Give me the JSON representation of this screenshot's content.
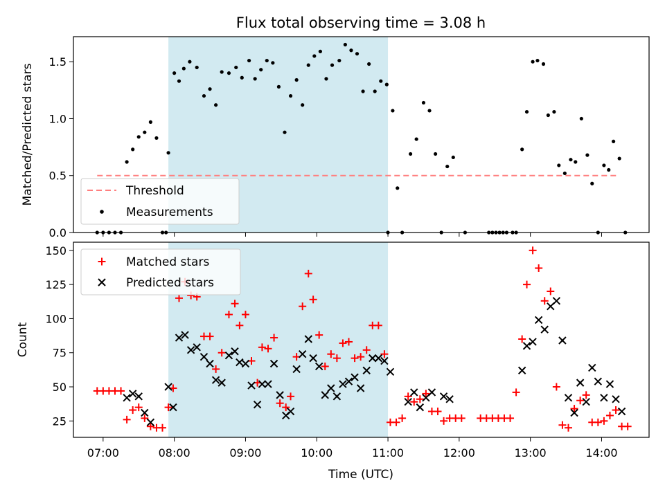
{
  "chart_data": [
    {
      "type": "scatter",
      "title": "Flux total observing time = 3.08 h",
      "ylabel": "Matched/Predicted stars",
      "ylim": [
        0,
        1.72
      ],
      "y_ticks": [
        "0.0",
        "0.5",
        "1.0",
        "1.5"
      ],
      "shaded_interval": {
        "start": "07:55",
        "end": "11:00",
        "color": "#add8e6"
      },
      "legend_position": "lower-left",
      "threshold": {
        "name": "Threshold",
        "value": 0.5,
        "x_start": "06:55",
        "x_end": "14:15",
        "color": "#ff7f7f"
      },
      "series": [
        {
          "name": "Measurements",
          "color": "#000000",
          "points": [
            [
              "06:55",
              0
            ],
            [
              "07:00",
              0
            ],
            [
              "07:05",
              0
            ],
            [
              "07:10",
              0
            ],
            [
              "07:15",
              0
            ],
            [
              "07:20",
              0.62
            ],
            [
              "07:25",
              0.73
            ],
            [
              "07:30",
              0.84
            ],
            [
              "07:35",
              0.88
            ],
            [
              "07:40",
              0.97
            ],
            [
              "07:45",
              0.83
            ],
            [
              "07:50",
              0
            ],
            [
              "07:53",
              0
            ],
            [
              "07:55",
              0.7
            ],
            [
              "08:00",
              1.4
            ],
            [
              "08:04",
              1.33
            ],
            [
              "08:08",
              1.44
            ],
            [
              "08:13",
              1.5
            ],
            [
              "08:19",
              1.45
            ],
            [
              "08:25",
              1.2
            ],
            [
              "08:30",
              1.26
            ],
            [
              "08:35",
              1.12
            ],
            [
              "08:40",
              1.41
            ],
            [
              "08:46",
              1.4
            ],
            [
              "08:52",
              1.45
            ],
            [
              "08:57",
              1.36
            ],
            [
              "09:03",
              1.51
            ],
            [
              "09:08",
              1.35
            ],
            [
              "09:13",
              1.43
            ],
            [
              "09:18",
              1.51
            ],
            [
              "09:23",
              1.49
            ],
            [
              "09:28",
              1.28
            ],
            [
              "09:33",
              0.88
            ],
            [
              "09:38",
              1.2
            ],
            [
              "09:43",
              1.34
            ],
            [
              "09:48",
              1.12
            ],
            [
              "09:53",
              1.47
            ],
            [
              "09:58",
              1.55
            ],
            [
              "10:03",
              1.59
            ],
            [
              "10:08",
              1.35
            ],
            [
              "10:13",
              1.47
            ],
            [
              "10:19",
              1.51
            ],
            [
              "10:24",
              1.65
            ],
            [
              "10:29",
              1.6
            ],
            [
              "10:34",
              1.57
            ],
            [
              "10:39",
              1.24
            ],
            [
              "10:44",
              1.48
            ],
            [
              "10:49",
              1.24
            ],
            [
              "10:54",
              1.33
            ],
            [
              "10:59",
              1.3
            ],
            [
              "11:00",
              0
            ],
            [
              "11:04",
              1.07
            ],
            [
              "11:08",
              0.39
            ],
            [
              "11:12",
              0
            ],
            [
              "11:19",
              0.69
            ],
            [
              "11:24",
              0.82
            ],
            [
              "11:30",
              1.14
            ],
            [
              "11:35",
              1.07
            ],
            [
              "11:40",
              0.69
            ],
            [
              "11:45",
              0
            ],
            [
              "11:50",
              0.58
            ],
            [
              "11:55",
              0.66
            ],
            [
              "12:05",
              0
            ],
            [
              "12:25",
              0
            ],
            [
              "12:28",
              0
            ],
            [
              "12:31",
              0
            ],
            [
              "12:34",
              0
            ],
            [
              "12:37",
              0
            ],
            [
              "12:40",
              0
            ],
            [
              "12:45",
              0
            ],
            [
              "12:48",
              0
            ],
            [
              "12:53",
              0.73
            ],
            [
              "12:57",
              1.06
            ],
            [
              "13:02",
              1.5
            ],
            [
              "13:06",
              1.51
            ],
            [
              "13:11",
              1.48
            ],
            [
              "13:15",
              1.03
            ],
            [
              "13:20",
              1.06
            ],
            [
              "13:24",
              0.59
            ],
            [
              "13:29",
              0.52
            ],
            [
              "13:34",
              0.64
            ],
            [
              "13:38",
              0.62
            ],
            [
              "13:43",
              1.0
            ],
            [
              "13:48",
              0.68
            ],
            [
              "13:52",
              0.43
            ],
            [
              "13:57",
              0
            ],
            [
              "14:02",
              0.59
            ],
            [
              "14:06",
              0.55
            ],
            [
              "14:10",
              0.8
            ],
            [
              "14:15",
              0.65
            ],
            [
              "14:20",
              0
            ]
          ]
        }
      ]
    },
    {
      "type": "scatter",
      "xlabel": "Time (UTC)",
      "ylabel": "Count",
      "ylim": [
        13,
        156
      ],
      "xlim": [
        "06:35",
        "14:40"
      ],
      "x_ticks": [
        "07:00",
        "08:00",
        "09:00",
        "10:00",
        "11:00",
        "12:00",
        "13:00",
        "14:00"
      ],
      "y_ticks": [
        "25",
        "50",
        "75",
        "100",
        "125",
        "150"
      ],
      "shaded_interval": {
        "start": "07:55",
        "end": "11:00",
        "color": "#add8e6"
      },
      "legend_position": "upper-left",
      "series": [
        {
          "name": "Matched stars",
          "marker": "plus",
          "color": "#ff0000",
          "points": [
            [
              "06:55",
              47
            ],
            [
              "07:00",
              47
            ],
            [
              "07:05",
              47
            ],
            [
              "07:10",
              47
            ],
            [
              "07:15",
              47
            ],
            [
              "07:20",
              26
            ],
            [
              "07:25",
              33
            ],
            [
              "07:30",
              35
            ],
            [
              "07:35",
              27
            ],
            [
              "07:40",
              21
            ],
            [
              "07:45",
              20
            ],
            [
              "07:50",
              20
            ],
            [
              "07:55",
              35
            ],
            [
              "07:59",
              49
            ],
            [
              "08:04",
              115
            ],
            [
              "08:09",
              127
            ],
            [
              "08:14",
              117
            ],
            [
              "08:19",
              116
            ],
            [
              "08:25",
              87
            ],
            [
              "08:30",
              87
            ],
            [
              "08:35",
              63
            ],
            [
              "08:40",
              75
            ],
            [
              "08:46",
              103
            ],
            [
              "08:51",
              111
            ],
            [
              "08:55",
              95
            ],
            [
              "09:00",
              103
            ],
            [
              "09:05",
              69
            ],
            [
              "09:10",
              53
            ],
            [
              "09:14",
              79
            ],
            [
              "09:19",
              78
            ],
            [
              "09:24",
              86
            ],
            [
              "09:29",
              38
            ],
            [
              "09:34",
              35
            ],
            [
              "09:38",
              43
            ],
            [
              "09:43",
              72
            ],
            [
              "09:48",
              109
            ],
            [
              "09:53",
              133
            ],
            [
              "09:57",
              114
            ],
            [
              "10:02",
              88
            ],
            [
              "10:07",
              65
            ],
            [
              "10:12",
              74
            ],
            [
              "10:17",
              71
            ],
            [
              "10:22",
              82
            ],
            [
              "10:27",
              83
            ],
            [
              "10:32",
              71
            ],
            [
              "10:37",
              72
            ],
            [
              "10:42",
              77
            ],
            [
              "10:47",
              95
            ],
            [
              "10:52",
              95
            ],
            [
              "10:57",
              74
            ],
            [
              "11:02",
              24
            ],
            [
              "11:07",
              24
            ],
            [
              "11:12",
              27
            ],
            [
              "11:17",
              43
            ],
            [
              "11:22",
              39
            ],
            [
              "11:27",
              41
            ],
            [
              "11:32",
              45
            ],
            [
              "11:37",
              32
            ],
            [
              "11:42",
              32
            ],
            [
              "11:47",
              25
            ],
            [
              "11:52",
              27
            ],
            [
              "11:57",
              27
            ],
            [
              "12:02",
              27
            ],
            [
              "12:18",
              27
            ],
            [
              "12:23",
              27
            ],
            [
              "12:28",
              27
            ],
            [
              "12:33",
              27
            ],
            [
              "12:38",
              27
            ],
            [
              "12:43",
              27
            ],
            [
              "12:48",
              46
            ],
            [
              "12:53",
              85
            ],
            [
              "12:57",
              125
            ],
            [
              "13:02",
              150
            ],
            [
              "13:07",
              137
            ],
            [
              "13:12",
              113
            ],
            [
              "13:17",
              120
            ],
            [
              "13:22",
              50
            ],
            [
              "13:27",
              22
            ],
            [
              "13:32",
              20
            ],
            [
              "13:37",
              34
            ],
            [
              "13:42",
              40
            ],
            [
              "13:47",
              44
            ],
            [
              "13:52",
              24
            ],
            [
              "13:57",
              24
            ],
            [
              "14:02",
              25
            ],
            [
              "14:07",
              29
            ],
            [
              "14:12",
              33
            ],
            [
              "14:17",
              21
            ],
            [
              "14:22",
              21
            ]
          ]
        },
        {
          "name": "Predicted stars",
          "marker": "x",
          "color": "#000000",
          "points": [
            [
              "07:20",
              42
            ],
            [
              "07:25",
              45
            ],
            [
              "07:30",
              43
            ],
            [
              "07:35",
              31
            ],
            [
              "07:40",
              24
            ],
            [
              "07:55",
              50
            ],
            [
              "07:59",
              35
            ],
            [
              "08:04",
              86
            ],
            [
              "08:09",
              88
            ],
            [
              "08:14",
              77
            ],
            [
              "08:19",
              79
            ],
            [
              "08:25",
              72
            ],
            [
              "08:30",
              67
            ],
            [
              "08:35",
              55
            ],
            [
              "08:40",
              53
            ],
            [
              "08:46",
              73
            ],
            [
              "08:51",
              76
            ],
            [
              "08:55",
              68
            ],
            [
              "09:00",
              67
            ],
            [
              "09:05",
              51
            ],
            [
              "09:10",
              37
            ],
            [
              "09:14",
              52
            ],
            [
              "09:19",
              52
            ],
            [
              "09:24",
              67
            ],
            [
              "09:29",
              44
            ],
            [
              "09:34",
              29
            ],
            [
              "09:38",
              32
            ],
            [
              "09:43",
              63
            ],
            [
              "09:48",
              74
            ],
            [
              "09:53",
              85
            ],
            [
              "09:57",
              71
            ],
            [
              "10:02",
              65
            ],
            [
              "10:07",
              44
            ],
            [
              "10:12",
              49
            ],
            [
              "10:17",
              43
            ],
            [
              "10:22",
              52
            ],
            [
              "10:27",
              54
            ],
            [
              "10:32",
              57
            ],
            [
              "10:37",
              49
            ],
            [
              "10:42",
              62
            ],
            [
              "10:47",
              71
            ],
            [
              "10:52",
              71
            ],
            [
              "10:57",
              69
            ],
            [
              "11:02",
              61
            ],
            [
              "11:17",
              39
            ],
            [
              "11:22",
              46
            ],
            [
              "11:27",
              35
            ],
            [
              "11:32",
              42
            ],
            [
              "11:37",
              46
            ],
            [
              "11:47",
              43
            ],
            [
              "11:52",
              41
            ],
            [
              "12:53",
              62
            ],
            [
              "12:57",
              80
            ],
            [
              "13:02",
              83
            ],
            [
              "13:07",
              99
            ],
            [
              "13:12",
              92
            ],
            [
              "13:17",
              109
            ],
            [
              "13:22",
              113
            ],
            [
              "13:27",
              84
            ],
            [
              "13:32",
              42
            ],
            [
              "13:37",
              31
            ],
            [
              "13:42",
              53
            ],
            [
              "13:47",
              39
            ],
            [
              "13:52",
              64
            ],
            [
              "13:57",
              54
            ],
            [
              "14:02",
              42
            ],
            [
              "14:07",
              52
            ],
            [
              "14:12",
              41
            ],
            [
              "14:17",
              32
            ]
          ]
        }
      ]
    }
  ]
}
